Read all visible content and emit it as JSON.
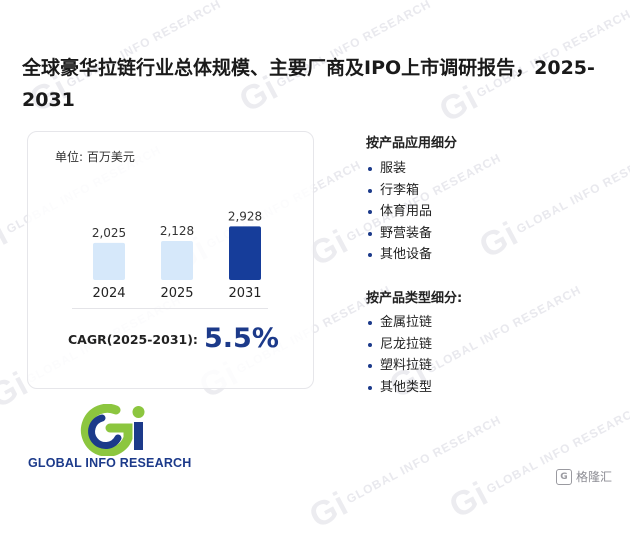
{
  "title": "全球豪华拉链行业总体规模、主要厂商及IPO上市调研报告，2025-2031",
  "watermark": "GLOBAL INFO RESEARCH",
  "chart_data": {
    "type": "bar",
    "unit_label": "单位: 百万美元",
    "categories": [
      "2024",
      "2025",
      "2031"
    ],
    "values": [
      2025,
      2128,
      2928
    ],
    "value_labels": [
      "2,025",
      "2,128",
      "2,928"
    ],
    "bar_colors": [
      "#d6e8fa",
      "#d6e8fa",
      "#163d9a"
    ],
    "title": "",
    "xlabel": "",
    "ylabel": "",
    "ylim": [
      0,
      3100
    ],
    "grid": false,
    "legend": "none"
  },
  "cagr": {
    "label": "CAGR(2025-2031):",
    "value": "5.5%"
  },
  "segments": [
    {
      "title": "按产品应用细分",
      "items": [
        "服装",
        "行李箱",
        "体育用品",
        "野营装备",
        "其他设备"
      ]
    },
    {
      "title": "按产品类型细分:",
      "items": [
        "金属拉链",
        "尼龙拉链",
        "塑料拉链",
        "其他类型"
      ]
    }
  ],
  "logo": {
    "text": "GLOBAL INFO RESEARCH",
    "icon": "gir-logo-icon",
    "colors": {
      "green": "#8cc63f",
      "blue": "#1c3a8a"
    }
  },
  "badge": {
    "text": "格隆汇",
    "icon": "gelonghui-icon"
  }
}
